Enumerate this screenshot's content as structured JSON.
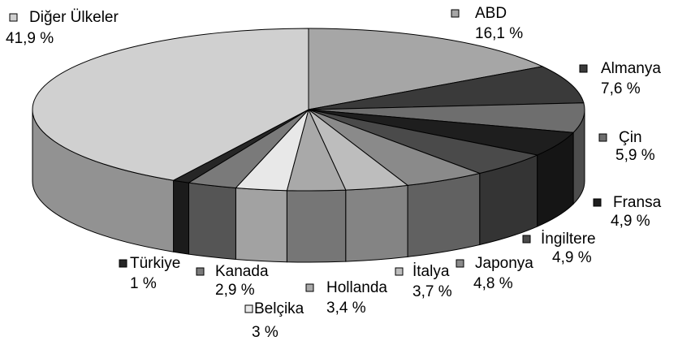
{
  "chart_data": {
    "type": "pie3d",
    "categories": [
      "ABD",
      "Almanya",
      "Çin",
      "Fransa",
      "İngiltere",
      "Japonya",
      "İtalya",
      "Hollanda",
      "Belçika",
      "Kanada",
      "Türkiye",
      "Diğer Ülkeler"
    ],
    "values": [
      16.1,
      7.6,
      5.9,
      4.9,
      4.9,
      4.8,
      3.7,
      3.4,
      3,
      2.9,
      1,
      41.9
    ],
    "value_labels": [
      "16,1 %",
      "7,6 %",
      "5,9 %",
      "4,9 %",
      "4,9 %",
      "4,8 %",
      "3,7 %",
      "3,4 %",
      "3 %",
      "2,9 %",
      "1 %",
      "41,9 %"
    ],
    "colors": [
      "#a6a6a6",
      "#3a3a3a",
      "#6e6e6e",
      "#1e1e1e",
      "#4a4a4a",
      "#8a8a8a",
      "#bdbdbd",
      "#a9a9a9",
      "#e8e8e8",
      "#7a7a7a",
      "#262626",
      "#d0d0d0"
    ]
  }
}
